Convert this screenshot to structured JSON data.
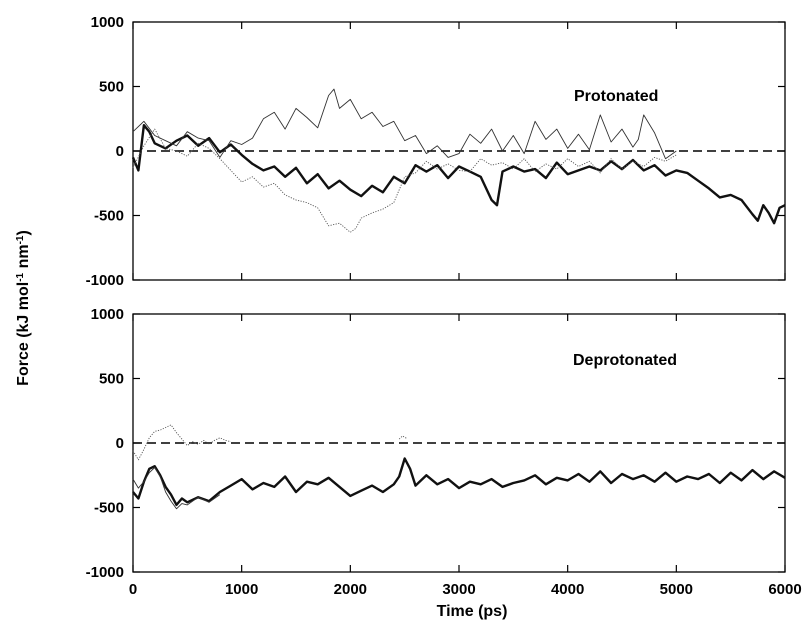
{
  "chart_data": [
    {
      "type": "line",
      "panel_label": "Protonated",
      "xlim": [
        0,
        6000
      ],
      "ylim": [
        -1000,
        1000
      ],
      "x_ticks": [
        0,
        1000,
        2000,
        3000,
        4000,
        5000,
        6000
      ],
      "y_ticks": [
        1000,
        500,
        0,
        -500,
        -1000
      ],
      "y_tick_labels": [
        "1000",
        "500",
        "0",
        "-500",
        "-1000"
      ],
      "reference_line": {
        "y": 0,
        "style": "dashed"
      },
      "grid": false,
      "series": [
        {
          "style": "thick",
          "x": [
            0,
            50,
            100,
            150,
            200,
            300,
            400,
            500,
            600,
            700,
            800,
            900,
            1000,
            1100,
            1200,
            1300,
            1400,
            1500,
            1600,
            1700,
            1800,
            1900,
            2000,
            2100,
            2200,
            2300,
            2400,
            2500,
            2600,
            2700,
            2800,
            2900,
            3000,
            3100,
            3200,
            3300,
            3350,
            3400,
            3500,
            3600,
            3700,
            3800,
            3900,
            4000,
            4100,
            4200,
            4300,
            4400,
            4500,
            4600,
            4700,
            4800,
            4900,
            5000,
            5100,
            5200,
            5300,
            5400,
            5500,
            5600,
            5700,
            5750,
            5800,
            5850,
            5900,
            5950,
            6000
          ],
          "values": [
            -50,
            -150,
            200,
            150,
            60,
            20,
            80,
            120,
            40,
            100,
            -10,
            50,
            -30,
            -100,
            -150,
            -120,
            -200,
            -130,
            -250,
            -180,
            -290,
            -230,
            -300,
            -350,
            -270,
            -320,
            -200,
            -250,
            -110,
            -160,
            -110,
            -210,
            -120,
            -160,
            -200,
            -380,
            -420,
            -160,
            -120,
            -160,
            -140,
            -210,
            -90,
            -180,
            -150,
            -120,
            -150,
            -80,
            -140,
            -70,
            -150,
            -110,
            -190,
            -150,
            -170,
            -230,
            -290,
            -360,
            -340,
            -380,
            -490,
            -540,
            -420,
            -480,
            -560,
            -440,
            -420
          ]
        },
        {
          "style": "thin",
          "x": [
            0,
            100,
            200,
            300,
            400,
            500,
            600,
            700,
            800,
            900,
            1000,
            1100,
            1200,
            1300,
            1400,
            1500,
            1600,
            1700,
            1800,
            1850,
            1900,
            2000,
            2100,
            2200,
            2300,
            2400,
            2500,
            2600,
            2700,
            2800,
            2900,
            3000,
            3100,
            3200,
            3300,
            3400,
            3500,
            3600,
            3700,
            3800,
            3900,
            4000,
            4100,
            4200,
            4300,
            4400,
            4500,
            4600,
            4650,
            4700,
            4800,
            4900,
            5000
          ],
          "values": [
            150,
            230,
            120,
            80,
            40,
            150,
            100,
            80,
            -50,
            80,
            50,
            100,
            250,
            300,
            170,
            330,
            260,
            180,
            430,
            480,
            330,
            400,
            250,
            300,
            190,
            230,
            80,
            120,
            -20,
            40,
            -50,
            -20,
            130,
            60,
            170,
            0,
            120,
            -20,
            230,
            90,
            170,
            20,
            130,
            10,
            280,
            70,
            170,
            30,
            90,
            280,
            140,
            -60,
            0
          ]
        },
        {
          "style": "dotted",
          "x": [
            0,
            100,
            200,
            300,
            400,
            500,
            600,
            700,
            800,
            900,
            1000,
            1100,
            1200,
            1300,
            1400,
            1500,
            1600,
            1700,
            1800,
            1900,
            2000,
            2050,
            2100,
            2200,
            2300,
            2400,
            2500,
            2600,
            2700,
            2800,
            2900,
            3000,
            3100,
            3200,
            3300,
            3400,
            3500,
            3600,
            3700,
            3800,
            3900,
            4000,
            4100,
            4200,
            4300,
            4400,
            4500,
            4600,
            4700,
            4800,
            4900,
            5000
          ],
          "values": [
            -130,
            40,
            170,
            20,
            0,
            -40,
            60,
            20,
            -60,
            -150,
            -240,
            -200,
            -280,
            -250,
            -340,
            -380,
            -400,
            -440,
            -580,
            -560,
            -630,
            -600,
            -520,
            -480,
            -450,
            -400,
            -200,
            -170,
            -80,
            -140,
            -100,
            -150,
            -160,
            -60,
            -110,
            -90,
            -140,
            -60,
            -160,
            -100,
            -140,
            -60,
            -120,
            -80,
            -170,
            -60,
            -140,
            -80,
            -120,
            -50,
            -80,
            -30
          ]
        }
      ]
    },
    {
      "type": "line",
      "panel_label": "Deprotonated",
      "xlabel": "Time (ps)",
      "xlim": [
        0,
        6000
      ],
      "ylim": [
        -1000,
        1000
      ],
      "x_ticks": [
        0,
        1000,
        2000,
        3000,
        4000,
        5000,
        6000
      ],
      "x_tick_labels": [
        "0",
        "1000",
        "2000",
        "3000",
        "4000",
        "5000",
        "6000"
      ],
      "y_ticks": [
        1000,
        500,
        0,
        -500,
        -1000
      ],
      "y_tick_labels": [
        "1000",
        "500",
        "0",
        "-500",
        "-1000"
      ],
      "reference_line": {
        "y": 0,
        "style": "dashed"
      },
      "grid": false,
      "series": [
        {
          "style": "thick",
          "x": [
            0,
            50,
            100,
            150,
            200,
            250,
            300,
            350,
            400,
            450,
            500,
            600,
            700,
            800,
            900,
            1000,
            1100,
            1200,
            1300,
            1400,
            1500,
            1600,
            1700,
            1800,
            1900,
            2000,
            2100,
            2200,
            2300,
            2400,
            2450,
            2500,
            2550,
            2600,
            2700,
            2800,
            2900,
            3000,
            3100,
            3200,
            3300,
            3400,
            3500,
            3600,
            3700,
            3800,
            3900,
            4000,
            4100,
            4200,
            4300,
            4400,
            4500,
            4600,
            4700,
            4800,
            4900,
            5000,
            5100,
            5200,
            5300,
            5400,
            5500,
            5600,
            5700,
            5800,
            5900,
            6000
          ],
          "values": [
            -380,
            -430,
            -300,
            -200,
            -180,
            -250,
            -340,
            -400,
            -480,
            -430,
            -460,
            -420,
            -450,
            -380,
            -330,
            -280,
            -360,
            -310,
            -340,
            -260,
            -380,
            -300,
            -320,
            -270,
            -340,
            -410,
            -370,
            -330,
            -380,
            -320,
            -260,
            -120,
            -200,
            -330,
            -250,
            -320,
            -280,
            -350,
            -300,
            -320,
            -280,
            -340,
            -310,
            -290,
            -250,
            -320,
            -270,
            -290,
            -240,
            -300,
            -220,
            -310,
            -240,
            -280,
            -250,
            -300,
            -230,
            -300,
            -260,
            -280,
            -240,
            -310,
            -230,
            -290,
            -210,
            -280,
            -220,
            -270
          ]
        },
        {
          "style": "thin",
          "x": [
            0,
            50,
            100,
            150,
            200,
            250,
            300,
            350,
            400,
            450,
            500,
            600,
            700,
            800
          ],
          "values": [
            -280,
            -350,
            -300,
            -230,
            -190,
            -260,
            -380,
            -450,
            -510,
            -470,
            -480,
            -420,
            -460,
            -400
          ]
        },
        {
          "style": "dotted",
          "x": [
            0,
            50,
            100,
            150,
            200,
            250,
            300,
            350,
            400,
            450,
            500,
            550,
            600,
            650,
            700,
            750,
            800,
            850,
            900
          ],
          "values": [
            -60,
            -130,
            -50,
            40,
            90,
            100,
            120,
            140,
            80,
            30,
            -20,
            10,
            -10,
            20,
            -10,
            20,
            40,
            20,
            10
          ]
        },
        {
          "style": "dotted",
          "x": [
            2450,
            2480,
            2520
          ],
          "values": [
            30,
            55,
            35
          ]
        }
      ]
    }
  ],
  "shared_ylabel": {
    "prefix": "Force (kJ mol",
    "sup1": "-1",
    "middle": " nm",
    "sup2": "-1",
    "suffix": ")"
  }
}
